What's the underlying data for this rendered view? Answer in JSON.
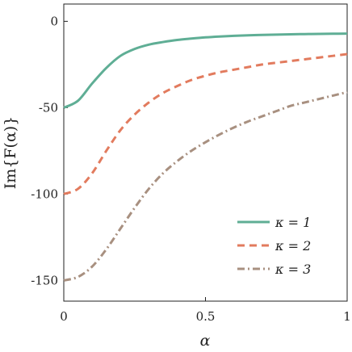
{
  "chart_data": {
    "type": "line",
    "title": "",
    "xlabel": "α",
    "ylabel": "Im{F(α)}",
    "xlim": [
      0,
      1
    ],
    "ylim": [
      -162,
      10
    ],
    "xticks": [
      {
        "value": 0,
        "label": "0"
      },
      {
        "value": 0.5,
        "label": "0.5"
      },
      {
        "value": 1,
        "label": "1"
      }
    ],
    "yticks": [
      {
        "value": 0,
        "label": "0"
      },
      {
        "value": -50,
        "label": "-50"
      },
      {
        "value": -100,
        "label": "-100"
      },
      {
        "value": -150,
        "label": "-150"
      }
    ],
    "grid": false,
    "legend_position": "bottom-right",
    "x": [
      0,
      0.05,
      0.1,
      0.15,
      0.2,
      0.25,
      0.3,
      0.35,
      0.4,
      0.45,
      0.5,
      0.55,
      0.6,
      0.65,
      0.7,
      0.75,
      0.8,
      0.85,
      0.9,
      0.95,
      1.0
    ],
    "series": [
      {
        "name": "κ = 1",
        "color": "#5fae95",
        "dash": "solid",
        "values": [
          -50,
          -46,
          -36,
          -27,
          -20,
          -16,
          -13.5,
          -12,
          -10.8,
          -10,
          -9.3,
          -8.8,
          -8.4,
          -8.1,
          -7.9,
          -7.7,
          -7.5,
          -7.4,
          -7.3,
          -7.2,
          -7.1
        ]
      },
      {
        "name": "κ = 2",
        "color": "#e27b5e",
        "dash": "dashed",
        "values": [
          -100,
          -97,
          -88,
          -75,
          -63,
          -54,
          -47,
          -41.5,
          -37.5,
          -34,
          -31.5,
          -29.5,
          -28,
          -26.5,
          -25,
          -24,
          -23,
          -22,
          -21,
          -20,
          -19
        ]
      },
      {
        "name": "κ = 3",
        "color": "#a89080",
        "dash": "dashdot",
        "values": [
          -150,
          -148,
          -142,
          -132,
          -120,
          -108,
          -97,
          -88,
          -81,
          -75,
          -70,
          -65.5,
          -61.5,
          -58,
          -55,
          -52,
          -49,
          -47,
          -45,
          -43,
          -41
        ]
      }
    ]
  }
}
